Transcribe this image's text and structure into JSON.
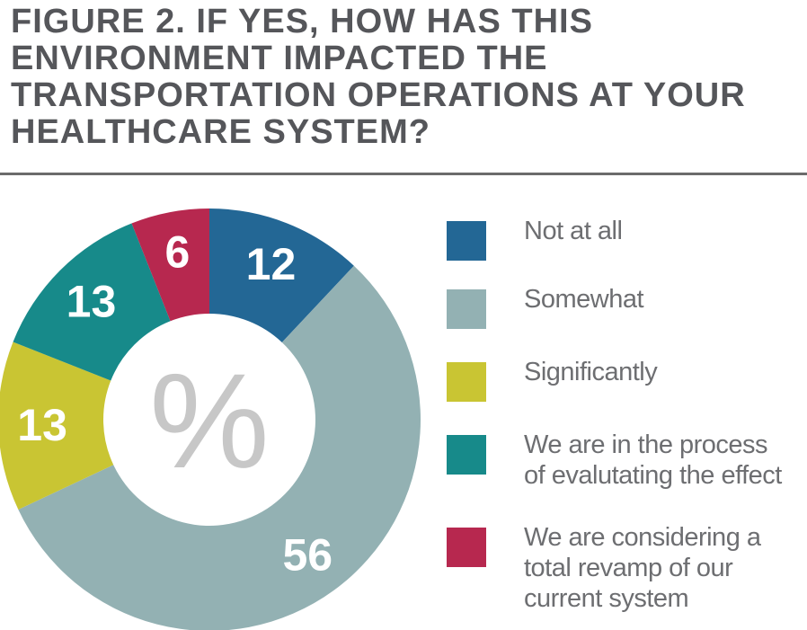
{
  "title": "FIGURE 2. IF YES, HOW HAS THIS ENVIRONMENT IMPACTED THE TRANSPORTATION OPERATIONS AT YOUR HEALTHCARE SYSTEM?",
  "center_symbol": "%",
  "chart_data": {
    "type": "pie",
    "variant": "donut",
    "unit": "%",
    "legend_position": "right",
    "categories": [
      "Not at all",
      "Somewhat",
      "Significantly",
      "We are in the process of evalutating the effect",
      "We are considering a total revamp of our current system"
    ],
    "values": [
      12,
      56,
      13,
      13,
      6
    ],
    "colors": [
      "#236795",
      "#93b1b3",
      "#c9c533",
      "#178a8a",
      "#b7284f"
    ]
  },
  "legend": [
    {
      "label": "Not at all",
      "color": "#236795"
    },
    {
      "label": "Somewhat",
      "color": "#93b1b3"
    },
    {
      "label": "Significantly",
      "color": "#c9c533"
    },
    {
      "label": "We are in the process\nof evalutating the effect",
      "color": "#178a8a"
    },
    {
      "label": "We are considering a\ntotal revamp of our\ncurrent system",
      "color": "#b7284f"
    }
  ]
}
